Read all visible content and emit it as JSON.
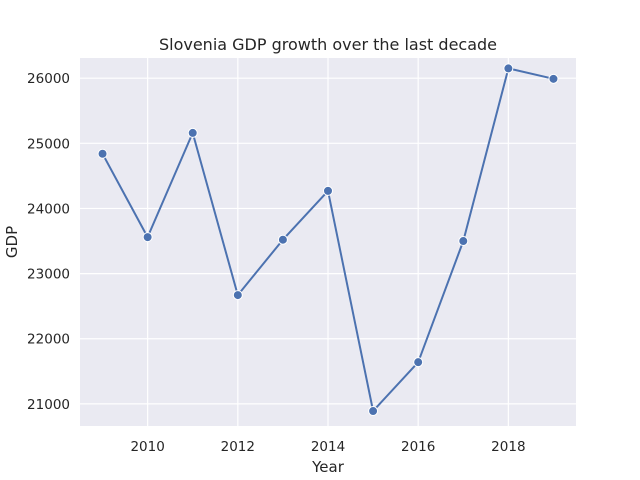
{
  "chart_data": {
    "type": "line",
    "title": "Slovenia GDP growth over the last decade",
    "xlabel": "Year",
    "ylabel": "GDP",
    "x": [
      2009,
      2010,
      2011,
      2012,
      2013,
      2014,
      2015,
      2016,
      2017,
      2018,
      2019
    ],
    "series": [
      {
        "name": "GDP",
        "values": [
          24840,
          23560,
          25160,
          22670,
          23520,
          24270,
          20890,
          21640,
          23500,
          26150,
          25990
        ]
      }
    ],
    "xlim": [
      2008.5,
      2019.5
    ],
    "ylim": [
      20660,
      26310
    ],
    "xticks": [
      2010,
      2012,
      2014,
      2016,
      2018
    ],
    "xtick_labels": [
      "2010",
      "2012",
      "2014",
      "2016",
      "2018"
    ],
    "yticks": [
      21000,
      22000,
      23000,
      24000,
      25000,
      26000
    ],
    "ytick_labels": [
      "21000",
      "22000",
      "23000",
      "24000",
      "25000",
      "26000"
    ],
    "grid": true,
    "colors": {
      "background": "#eaeaf2",
      "grid": "#ffffff",
      "line": "#4c72b0",
      "marker_edge": "#ffffff"
    }
  }
}
